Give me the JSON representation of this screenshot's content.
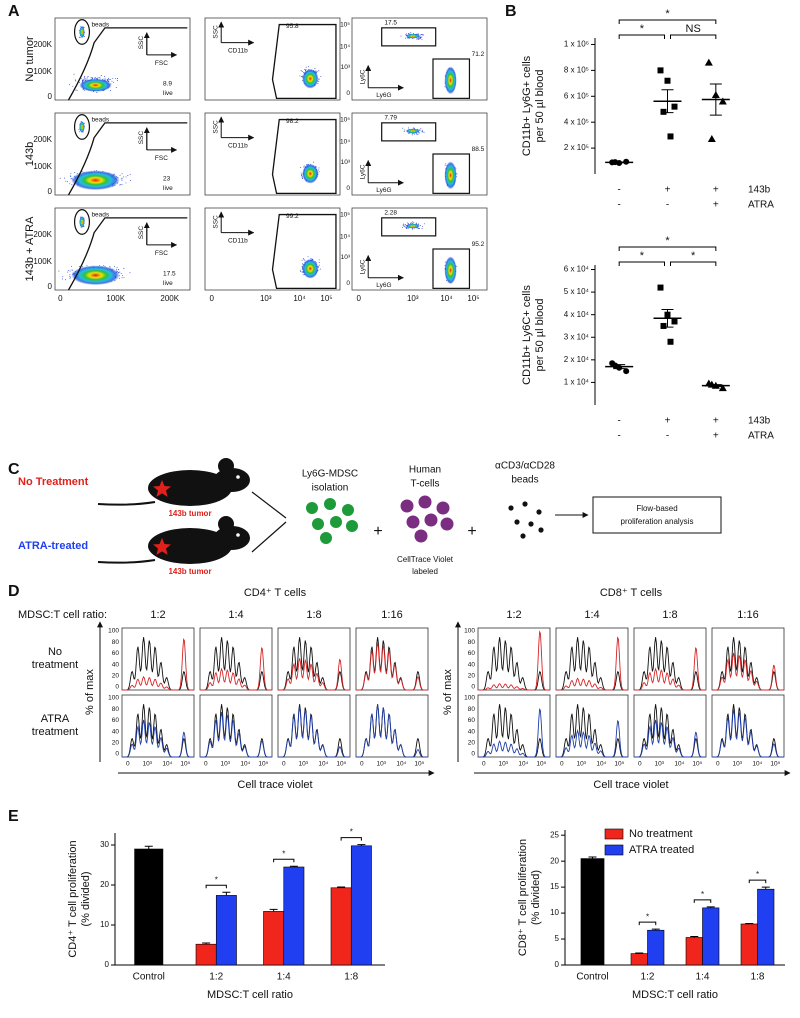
{
  "panel_a": {
    "label": "A",
    "beads": "beads",
    "live": "live",
    "ssc": "SSC",
    "fsc": "FSC",
    "cd11b": "CD11b",
    "ly6c": "Ly6C",
    "ly6g": "Ly6G",
    "linear_y_ticks": [
      "200K",
      "100K",
      "0"
    ],
    "linear_x_ticks": [
      "0",
      "100K",
      "200K"
    ],
    "log_x_ticks": [
      "0",
      "10³",
      "10⁴",
      "10⁵"
    ],
    "log_y_ticks": [
      "10⁵",
      "10⁴",
      "10³",
      "0"
    ],
    "rows": [
      {
        "name": "No tumor",
        "live_pct": "8.9",
        "cd11b_pct": "95.8",
        "ly6c_pct": "17.5",
        "ly6g_pct": "71.2"
      },
      {
        "name": "143b",
        "live_pct": "23",
        "cd11b_pct": "98.2",
        "ly6c_pct": "7.79",
        "ly6g_pct": "88.5"
      },
      {
        "name": "143b + ATRA",
        "live_pct": "17.5",
        "cd11b_pct": "99.2",
        "ly6c_pct": "2.28",
        "ly6g_pct": "95.2"
      }
    ]
  },
  "panel_c": {
    "label": "C",
    "no_treatment": "No Treatment",
    "atra": "ATRA-treated",
    "tumor": "143b tumor",
    "mdsc": [
      "Ly6G-MDSC",
      "isolation"
    ],
    "tcells": [
      "Human",
      "T-cells"
    ],
    "ctv": [
      "CellTrace Violet",
      "labeled"
    ],
    "beads": [
      "αCD3/αCD28",
      "beads"
    ],
    "plus": "+",
    "analysis": [
      "Flow-based",
      "proliferation analysis"
    ]
  },
  "panel_d": {
    "label": "D",
    "groups": [
      "CD4⁺ T cells",
      "CD8⁺ T cells"
    ],
    "ratio_label": "MDSC:T cell ratio:",
    "ratios": [
      "1:2",
      "1:4",
      "1:8",
      "1:16"
    ],
    "rows": [
      [
        "No",
        "treatment"
      ],
      [
        "ATRA",
        "treatment"
      ]
    ],
    "trace_colors": [
      "#d62728",
      "#1f3ea8"
    ],
    "y_axis": "% of max",
    "x_axis": "Cell trace violet",
    "y_ticks": [
      "100",
      "80",
      "60",
      "40",
      "20",
      "0"
    ],
    "x_ticks": [
      "0",
      "10³",
      "10⁴",
      "10⁵"
    ]
  },
  "chart_data": [
    {
      "type": "dot",
      "panel_label": "B",
      "y_label": [
        "CD11b+ Ly6G+ cells",
        "per 50 µl blood"
      ],
      "ylim": [
        0,
        1050000
      ],
      "yticks": [
        {
          "value": 200000,
          "label": "2 x 10⁵"
        },
        {
          "value": 400000,
          "label": "4 x 10⁵"
        },
        {
          "value": 600000,
          "label": "6 x 10⁵"
        },
        {
          "value": 800000,
          "label": "8 x 10⁵"
        },
        {
          "value": 1000000,
          "label": "1 x 10⁶"
        }
      ],
      "conditions": [
        {
          "name": "143b",
          "levels": [
            "-",
            "+",
            "+"
          ]
        },
        {
          "name": "ATRA",
          "levels": [
            "-",
            "-",
            "+"
          ]
        }
      ],
      "groups": [
        {
          "marker": "circle",
          "points": [
            90000,
            85000,
            95000,
            92000
          ],
          "mean": 90000,
          "sem": 3000
        },
        {
          "marker": "square",
          "points": [
            800000,
            720000,
            520000,
            480000,
            290000
          ],
          "mean": 562000,
          "sem": 88000
        },
        {
          "marker": "triangle",
          "points": [
            860000,
            610000,
            560000,
            270000
          ],
          "mean": 575000,
          "sem": 120000
        }
      ],
      "significance": [
        "*",
        "*",
        "NS"
      ]
    },
    {
      "type": "dot",
      "y_label": [
        "CD11b+ Ly6C+ cells",
        "per 50 µl blood"
      ],
      "ylim": [
        0,
        62000
      ],
      "yticks": [
        {
          "value": 10000,
          "label": "1 x 10⁴"
        },
        {
          "value": 20000,
          "label": "2 x 10⁴"
        },
        {
          "value": 30000,
          "label": "3 x 10⁴"
        },
        {
          "value": 40000,
          "label": "4 x 10⁴"
        },
        {
          "value": 50000,
          "label": "5 x 10⁴"
        },
        {
          "value": 60000,
          "label": "6 x 10⁴"
        }
      ],
      "conditions": [
        {
          "name": "143b",
          "levels": [
            "-",
            "+",
            "+"
          ]
        },
        {
          "name": "ATRA",
          "levels": [
            "-",
            "-",
            "+"
          ]
        }
      ],
      "groups": [
        {
          "marker": "circle",
          "points": [
            18500,
            16500,
            15000,
            17500
          ],
          "mean": 17000,
          "sem": 900
        },
        {
          "marker": "square",
          "points": [
            52000,
            40000,
            37000,
            35000,
            28000
          ],
          "mean": 38400,
          "sem": 3900
        },
        {
          "marker": "triangle",
          "points": [
            9500,
            8500,
            7500,
            9000
          ],
          "mean": 8600,
          "sem": 450
        }
      ],
      "significance": [
        "*",
        "*",
        "*"
      ]
    },
    {
      "type": "bar",
      "panel_label": "E",
      "y_label": [
        "CD4⁺ T cell proliferation",
        "(% divided)"
      ],
      "x_label": "MDSC:T cell ratio",
      "categories": [
        "Control",
        "1:2",
        "1:4",
        "1:8"
      ],
      "ylim": [
        0,
        33
      ],
      "yticks": [
        0,
        10,
        20,
        30
      ],
      "series": [
        {
          "color": "#000000",
          "values": [
            29,
            null,
            null,
            null
          ],
          "errors": [
            0.7,
            null,
            null,
            null
          ]
        },
        {
          "color": "#f0261c",
          "values": [
            null,
            5.2,
            13.4,
            19.3
          ],
          "errors": [
            null,
            0.3,
            0.5,
            0.2
          ]
        },
        {
          "color": "#1f3ff0",
          "values": [
            null,
            17.4,
            24.5,
            29.8
          ],
          "errors": [
            null,
            0.8,
            0.2,
            0.3
          ]
        }
      ],
      "significance": [
        "*",
        "*",
        "*"
      ],
      "legend": false
    },
    {
      "type": "bar",
      "y_label": [
        "CD8⁺ T cell proliferation",
        "(% divided)"
      ],
      "x_label": "MDSC:T cell ratio",
      "categories": [
        "Control",
        "1:2",
        "1:4",
        "1:8"
      ],
      "ylim": [
        0,
        26
      ],
      "yticks": [
        0,
        5,
        10,
        15,
        20,
        25
      ],
      "series": [
        {
          "color": "#000000",
          "values": [
            20.5,
            null,
            null,
            null
          ],
          "errors": [
            0.3,
            null,
            null,
            null
          ]
        },
        {
          "name": "No treatment",
          "color": "#f0261c",
          "values": [
            null,
            2.2,
            5.3,
            7.9
          ],
          "errors": [
            null,
            0.1,
            0.2,
            0.1
          ]
        },
        {
          "name": "ATRA treated",
          "color": "#1f3ff0",
          "values": [
            null,
            6.7,
            11,
            14.6
          ],
          "errors": [
            null,
            0.2,
            0.2,
            0.4
          ]
        }
      ],
      "significance": [
        "*",
        "*",
        "*"
      ],
      "legend": "top-left"
    }
  ]
}
